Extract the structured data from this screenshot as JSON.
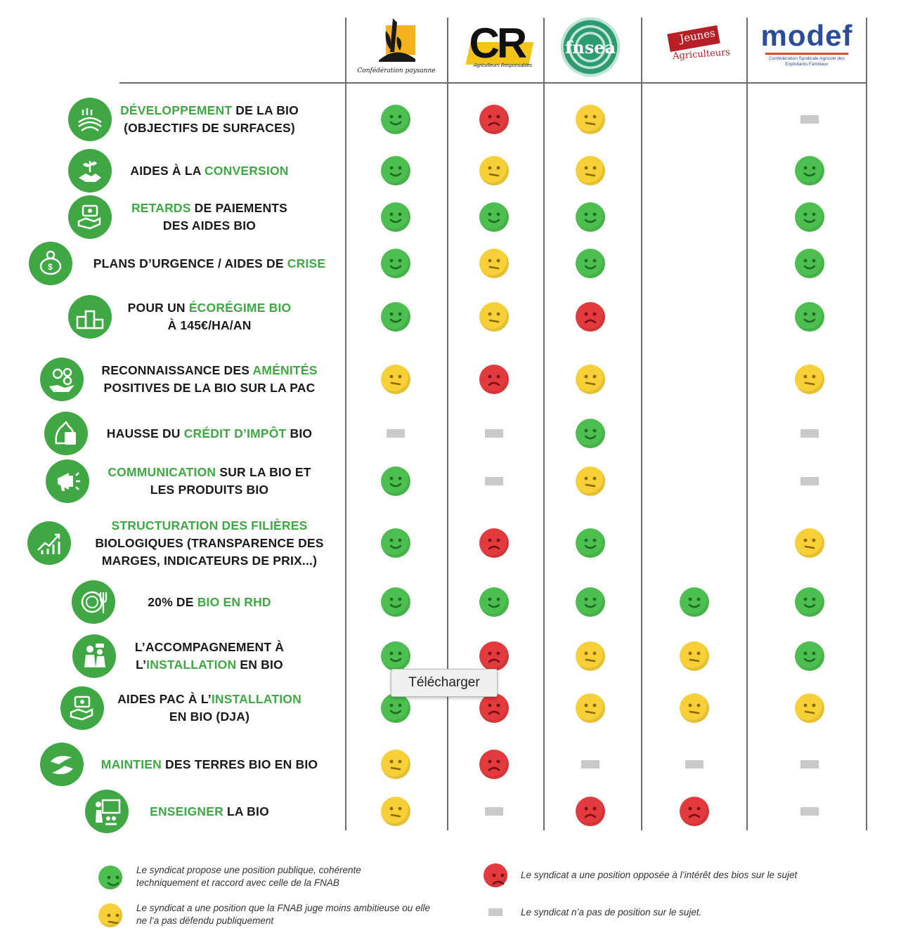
{
  "logos": [
    {
      "name": "confederation-paysanne",
      "caption": "Confédération paysanne"
    },
    {
      "name": "coordination-rurale",
      "text": "CR",
      "caption": "Agriculteurs Responsables"
    },
    {
      "name": "fnsea",
      "text": "fnsea"
    },
    {
      "name": "jeunes-agriculteurs",
      "text_top": "Jeunes",
      "text_bottom": "Agriculteurs"
    },
    {
      "name": "modef",
      "text": "modef",
      "caption": "Confédération Syndicale Agricole des Exploitants Familiaux"
    }
  ],
  "criteria": [
    {
      "lines": [
        [
          {
            "t": "DÉVELOPPEMENT",
            "h": true
          },
          {
            "t": " DE LA BIO",
            "h": false
          }
        ],
        [
          {
            "t": "(OBJECTIFS DE SURFACES)",
            "h": false
          }
        ]
      ],
      "icon": "fields-icon",
      "marks": [
        "green",
        "red",
        "yellow",
        "none",
        "dash"
      ]
    },
    {
      "lines": [
        [
          {
            "t": "AIDES À LA ",
            "h": false
          },
          {
            "t": "CONVERSION",
            "h": true
          }
        ]
      ],
      "icon": "handshake-plant-icon",
      "marks": [
        "green",
        "yellow",
        "yellow",
        "none",
        "green"
      ]
    },
    {
      "lines": [
        [
          {
            "t": "RETARDS",
            "h": true
          },
          {
            "t": " DE PAIEMENTS",
            "h": false
          }
        ],
        [
          {
            "t": "DES AIDES BIO",
            "h": false
          }
        ]
      ],
      "icon": "money-hand-icon",
      "marks": [
        "green",
        "green",
        "green",
        "none",
        "green"
      ]
    },
    {
      "lines": [
        [
          {
            "t": "PLANS D’URGENCE / AIDES DE ",
            "h": false
          },
          {
            "t": "CRISE",
            "h": true
          }
        ]
      ],
      "icon": "piggy-bank-icon",
      "marks": [
        "green",
        "yellow",
        "green",
        "none",
        "green"
      ]
    },
    {
      "lines": [
        [
          {
            "t": "POUR UN ",
            "h": false
          },
          {
            "t": "ÉCORÉGIME BIO",
            "h": true
          }
        ],
        [
          {
            "t": "À 145€/HA/AN",
            "h": false
          }
        ]
      ],
      "icon": "podium-icon",
      "marks": [
        "green",
        "yellow",
        "red",
        "none",
        "green"
      ]
    },
    {
      "lines": [
        [
          {
            "t": "RECONNAISSANCE DES ",
            "h": false
          },
          {
            "t": "AMÉNITÉS",
            "h": true
          }
        ],
        [
          {
            "t": "POSITIVES DE LA BIO SUR LA PAC",
            "h": false
          }
        ]
      ],
      "icon": "hand-coins-icon",
      "marks": [
        "yellow",
        "red",
        "yellow",
        "none",
        "yellow"
      ]
    },
    {
      "lines": [
        [
          {
            "t": "HAUSSE DU ",
            "h": false
          },
          {
            "t": "CRÉDIT D’IMPÔT",
            "h": true
          },
          {
            "t": " BIO",
            "h": false
          }
        ]
      ],
      "icon": "calculator-icon",
      "marks": [
        "dash",
        "dash",
        "green",
        "none",
        "dash"
      ]
    },
    {
      "lines": [
        [
          {
            "t": "COMMUNICATION",
            "h": true
          },
          {
            "t": " SUR LA BIO ET",
            "h": false
          }
        ],
        [
          {
            "t": "LES PRODUITS BIO",
            "h": false
          }
        ]
      ],
      "icon": "megaphone-icon",
      "marks": [
        "green",
        "dash",
        "yellow",
        "none",
        "dash"
      ]
    },
    {
      "lines": [
        [
          {
            "t": "STRUCTURATION DES FILIÈRES",
            "h": true
          }
        ],
        [
          {
            "t": "BIOLOGIQUES (TRANSPARENCE DES",
            "h": false
          }
        ],
        [
          {
            "t": "MARGES, INDICATEURS DE PRIX...)",
            "h": false
          }
        ]
      ],
      "icon": "growth-chart-icon",
      "marks": [
        "green",
        "red",
        "green",
        "none",
        "yellow"
      ]
    },
    {
      "lines": [
        [
          {
            "t": "20% DE ",
            "h": false
          },
          {
            "t": "BIO EN RHD",
            "h": true
          }
        ]
      ],
      "icon": "plate-cutlery-icon",
      "marks": [
        "green",
        "green",
        "green",
        "green",
        "green"
      ]
    },
    {
      "lines": [
        [
          {
            "t": "L’ACCOMPAGNEMENT À",
            "h": false
          }
        ],
        [
          {
            "t": "L’",
            "h": false
          },
          {
            "t": "INSTALLATION",
            "h": true
          },
          {
            "t": " EN BIO",
            "h": false
          }
        ]
      ],
      "icon": "advisor-icon",
      "marks": [
        "green",
        "red",
        "yellow",
        "yellow",
        "green"
      ]
    },
    {
      "lines": [
        [
          {
            "t": "AIDES PAC À L’",
            "h": false
          },
          {
            "t": "INSTALLATION",
            "h": true
          }
        ],
        [
          {
            "t": "EN BIO (DJA)",
            "h": false
          }
        ]
      ],
      "icon": "money-hand-icon",
      "marks": [
        "green",
        "red",
        "yellow",
        "yellow",
        "yellow"
      ]
    },
    {
      "lines": [
        [
          {
            "t": "MAINTIEN",
            "h": true
          },
          {
            "t": " DES TERRES BIO EN BIO",
            "h": false
          }
        ]
      ],
      "icon": "hands-icon",
      "marks": [
        "yellow",
        "red",
        "dash",
        "dash",
        "dash"
      ]
    },
    {
      "lines": [
        [
          {
            "t": "ENSEIGNER",
            "h": true
          },
          {
            "t": " LA BIO",
            "h": false
          }
        ]
      ],
      "icon": "teacher-icon",
      "marks": [
        "yellow",
        "dash",
        "red",
        "red",
        "dash"
      ]
    }
  ],
  "legend": {
    "green": "Le syndicat propose une position publique, cohérente techniquement et raccord avec celle de la FNAB",
    "yellow": "Le syndicat a une position que la FNAB juge moins ambitieuse ou elle ne l’a pas défendu publiquement",
    "red": "Le syndicat a une position opposée à l’intérêt des bios sur le sujet",
    "dash": "Le syndicat n’a pas de position sur le sujet."
  },
  "tooltip": "Télécharger",
  "colors": {
    "accent": "#3fa744",
    "green": "#4cbf50",
    "yellow": "#f7d038",
    "red": "#e23a3d",
    "dash": "#c9c9c9"
  }
}
